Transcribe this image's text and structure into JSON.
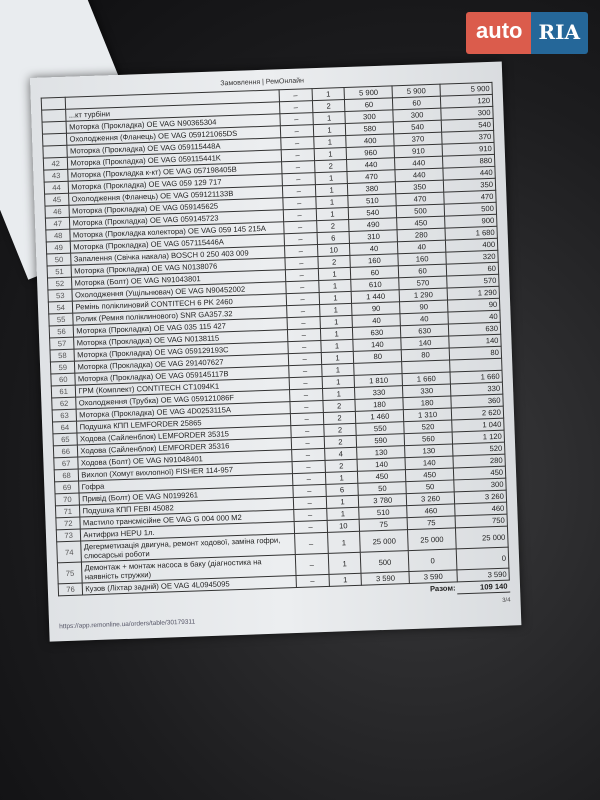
{
  "logo": {
    "part1": "auto",
    "part2": "RIA"
  },
  "document": {
    "header": "Замовлення | РемОнлайн",
    "total_label": "Разом:",
    "total_value": "109 140",
    "page_number": "3/4",
    "url": "https://app.remonline.ua/orders/table/30179311",
    "rows": [
      {
        "n": "",
        "name": "",
        "dash": "–",
        "qty": "1",
        "price": "5 900",
        "disc": "5 900",
        "sum": "5 900"
      },
      {
        "n": "",
        "name": "...кт турбіни",
        "dash": "–",
        "qty": "2",
        "price": "60",
        "disc": "60",
        "sum": "120"
      },
      {
        "n": "",
        "name": "Моторка (Прокладка) OE VAG N90365304",
        "dash": "–",
        "qty": "1",
        "price": "300",
        "disc": "300",
        "sum": "300"
      },
      {
        "n": "",
        "name": "Охолодження (Фланець) OE VAG 059121065DS",
        "dash": "–",
        "qty": "1",
        "price": "580",
        "disc": "540",
        "sum": "540"
      },
      {
        "n": "",
        "name": "Моторка (Прокладка) OE VAG 059115448A",
        "dash": "–",
        "qty": "1",
        "price": "400",
        "disc": "370",
        "sum": "370"
      },
      {
        "n": "42",
        "name": "Моторка (Прокладка) OE VAG 059115441K",
        "dash": "–",
        "qty": "1",
        "price": "960",
        "disc": "910",
        "sum": "910"
      },
      {
        "n": "43",
        "name": "Моторка (Прокладка к-кт) OE VAG 057198405B",
        "dash": "–",
        "qty": "2",
        "price": "440",
        "disc": "440",
        "sum": "880"
      },
      {
        "n": "44",
        "name": "Моторка (Прокладка) OE VAG 059 129 717",
        "dash": "–",
        "qty": "1",
        "price": "470",
        "disc": "440",
        "sum": "440"
      },
      {
        "n": "45",
        "name": "Охолодження (Фланець) OE VAG 059121133B",
        "dash": "–",
        "qty": "1",
        "price": "380",
        "disc": "350",
        "sum": "350"
      },
      {
        "n": "46",
        "name": "Моторка (Прокладка) OE VAG 059145625",
        "dash": "–",
        "qty": "1",
        "price": "510",
        "disc": "470",
        "sum": "470"
      },
      {
        "n": "47",
        "name": "Моторка (Прокладка) OE VAG 059145723",
        "dash": "–",
        "qty": "1",
        "price": "540",
        "disc": "500",
        "sum": "500"
      },
      {
        "n": "48",
        "name": "Моторка (Прокладка колектора) OE VAG 059 145 215A",
        "dash": "–",
        "qty": "2",
        "price": "490",
        "disc": "450",
        "sum": "900"
      },
      {
        "n": "49",
        "name": "Моторка (Прокладка) OE VAG 057115446A",
        "dash": "–",
        "qty": "6",
        "price": "310",
        "disc": "280",
        "sum": "1 680"
      },
      {
        "n": "50",
        "name": "Запалення (Свічка накала) BOSCH 0 250 403 009",
        "dash": "–",
        "qty": "10",
        "price": "40",
        "disc": "40",
        "sum": "400"
      },
      {
        "n": "51",
        "name": "Моторка (Прокладка) OE VAG N0138076",
        "dash": "–",
        "qty": "2",
        "price": "160",
        "disc": "160",
        "sum": "320"
      },
      {
        "n": "52",
        "name": "Моторка (Болт) OE VAG N91043801",
        "dash": "–",
        "qty": "1",
        "price": "60",
        "disc": "60",
        "sum": "60"
      },
      {
        "n": "53",
        "name": "Охолодження (Ущільнювач) OE VAG N90452002",
        "dash": "–",
        "qty": "1",
        "price": "610",
        "disc": "570",
        "sum": "570"
      },
      {
        "n": "54",
        "name": "Ремінь поліклиновий CONTITECH 6 PK 2460",
        "dash": "–",
        "qty": "1",
        "price": "1 440",
        "disc": "1 290",
        "sum": "1 290"
      },
      {
        "n": "55",
        "name": "Ролик (Ремня поліклинового) SNR GA357.32",
        "dash": "–",
        "qty": "1",
        "price": "90",
        "disc": "90",
        "sum": "90"
      },
      {
        "n": "56",
        "name": "Моторка (Прокладка) OE VAG 035 115 427",
        "dash": "–",
        "qty": "1",
        "price": "40",
        "disc": "40",
        "sum": "40"
      },
      {
        "n": "57",
        "name": "Моторка (Прокладка) OE VAG N0138115",
        "dash": "–",
        "qty": "1",
        "price": "630",
        "disc": "630",
        "sum": "630"
      },
      {
        "n": "58",
        "name": "Моторка (Прокладка) OE VAG 059129193C",
        "dash": "–",
        "qty": "1",
        "price": "140",
        "disc": "140",
        "sum": "140"
      },
      {
        "n": "59",
        "name": "Моторка (Прокладка) OE VAG 291407627",
        "dash": "–",
        "qty": "1",
        "price": "80",
        "disc": "80",
        "sum": "80"
      },
      {
        "n": "60",
        "name": "Моторка (Прокладка) OE VAG 059145117B",
        "dash": "–",
        "qty": "1",
        "price": "",
        "disc": "",
        "sum": ""
      },
      {
        "n": "61",
        "name": "ГРМ (Комплект) CONTITECH CT1094K1",
        "dash": "–",
        "qty": "1",
        "price": "1 810",
        "disc": "1 660",
        "sum": "1 660"
      },
      {
        "n": "62",
        "name": "Охолодження (Трубка) OE VAG 059121086F",
        "dash": "–",
        "qty": "1",
        "price": "330",
        "disc": "330",
        "sum": "330"
      },
      {
        "n": "63",
        "name": "Моторка (Прокладка) OE VAG 4D0253115A",
        "dash": "–",
        "qty": "2",
        "price": "180",
        "disc": "180",
        "sum": "360"
      },
      {
        "n": "64",
        "name": "Подушка КПП LEMFORDER 25865",
        "dash": "–",
        "qty": "2",
        "price": "1 460",
        "disc": "1 310",
        "sum": "2 620"
      },
      {
        "n": "65",
        "name": "Ходова (Сайленблок) LEMFORDER 35315",
        "dash": "–",
        "qty": "2",
        "price": "550",
        "disc": "520",
        "sum": "1 040"
      },
      {
        "n": "66",
        "name": "Ходова (Сайленблок) LEMFORDER 35316",
        "dash": "–",
        "qty": "2",
        "price": "590",
        "disc": "560",
        "sum": "1 120"
      },
      {
        "n": "67",
        "name": "Ходова (Болт) OE VAG N91048401",
        "dash": "–",
        "qty": "4",
        "price": "130",
        "disc": "130",
        "sum": "520"
      },
      {
        "n": "68",
        "name": "Вихлоп (Хомут вихлопної) FISHER 114-957",
        "dash": "–",
        "qty": "2",
        "price": "140",
        "disc": "140",
        "sum": "280"
      },
      {
        "n": "69",
        "name": "Гофра",
        "dash": "–",
        "qty": "1",
        "price": "450",
        "disc": "450",
        "sum": "450"
      },
      {
        "n": "70",
        "name": "Привід (Болт) OE VAG N0199261",
        "dash": "–",
        "qty": "6",
        "price": "50",
        "disc": "50",
        "sum": "300"
      },
      {
        "n": "71",
        "name": "Подушка КПП FEBI 45082",
        "dash": "–",
        "qty": "1",
        "price": "3 780",
        "disc": "3 260",
        "sum": "3 260"
      },
      {
        "n": "72",
        "name": "Мастило трансмісійне OE VAG G 004 000 M2",
        "dash": "–",
        "qty": "1",
        "price": "510",
        "disc": "460",
        "sum": "460"
      },
      {
        "n": "73",
        "name": "Антифриз HEPU 1л.",
        "dash": "–",
        "qty": "10",
        "price": "75",
        "disc": "75",
        "sum": "750"
      },
      {
        "n": "74",
        "name": "Дегерметизація двигуна, ремонт ходової, заміна гофри, слюсарські роботи",
        "dash": "–",
        "qty": "1",
        "price": "25 000",
        "disc": "25 000",
        "sum": "25 000"
      },
      {
        "n": "75",
        "name": "Демонтаж + монтаж насоса в баку (діагностика на наявність стружки)",
        "dash": "–",
        "qty": "1",
        "price": "500",
        "disc": "0",
        "sum": "0"
      },
      {
        "n": "76",
        "name": "Кузов (Ліхтар задній) OE VAG 4L0945095",
        "dash": "–",
        "qty": "1",
        "price": "3 590",
        "disc": "3 590",
        "sum": "3 590"
      }
    ]
  }
}
